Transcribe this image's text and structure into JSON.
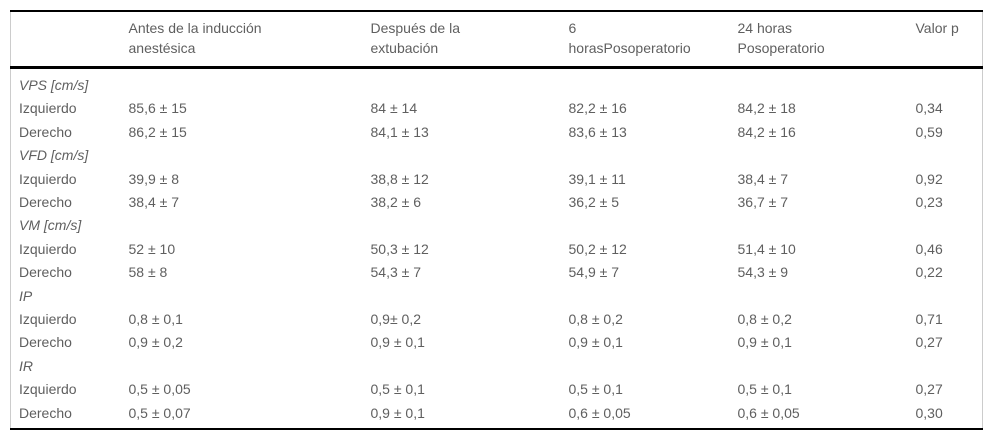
{
  "colors": {
    "text": "#5f5f5f",
    "border_strong": "#000000",
    "border_light": "#cccccc",
    "background": "#ffffff"
  },
  "table": {
    "columns": [
      {
        "label": ""
      },
      {
        "label": "Antes de la inducción\nanestésica"
      },
      {
        "label": "Después de la\nextubación"
      },
      {
        "label": "6\nhorasPosoperatorio"
      },
      {
        "label": "24 horas\nPosoperatorio"
      },
      {
        "label": "Valor p"
      }
    ],
    "groups": [
      {
        "label": "VPS [cm/s]",
        "rows": [
          {
            "label": "Izquierdo",
            "values": [
              "85,6 ± 15",
              "84 ± 14",
              "82,2 ± 16",
              "84,2 ± 18",
              "0,34"
            ]
          },
          {
            "label": "Derecho",
            "values": [
              "86,2 ± 15",
              "84,1 ± 13",
              "83,6 ± 13",
              "84,2 ± 16",
              "0,59"
            ]
          }
        ]
      },
      {
        "label": "VFD [cm/s]",
        "rows": [
          {
            "label": "Izquierdo",
            "values": [
              "39,9 ± 8",
              "38,8 ± 12",
              "39,1 ± 11",
              "38,4 ± 7",
              "0,92"
            ]
          },
          {
            "label": "Derecho",
            "values": [
              "38,4 ± 7",
              "38,2 ± 6",
              "36,2 ± 5",
              "36,7 ± 7",
              "0,23"
            ]
          }
        ]
      },
      {
        "label": "VM [cm/s]",
        "rows": [
          {
            "label": "Izquierdo",
            "values": [
              "52 ± 10",
              "50,3 ± 12",
              "50,2 ± 12",
              "51,4 ± 10",
              "0,46"
            ]
          },
          {
            "label": "Derecho",
            "values": [
              "58 ± 8",
              "54,3 ± 7",
              "54,9 ± 7",
              "54,3 ± 9",
              "0,22"
            ]
          }
        ]
      },
      {
        "label": "IP",
        "rows": [
          {
            "label": "Izquierdo",
            "values": [
              "0,8 ± 0,1",
              "0,9± 0,2",
              "0,8 ± 0,2",
              "0,8 ± 0,2",
              "0,71"
            ]
          },
          {
            "label": "Derecho",
            "values": [
              "0,9 ± 0,2",
              "0,9 ± 0,1",
              "0,9 ± 0,1",
              "0,9 ± 0,1",
              "0,27"
            ]
          }
        ]
      },
      {
        "label": "IR",
        "rows": [
          {
            "label": "Izquierdo",
            "values": [
              "0,5 ± 0,05",
              "0,5 ± 0,1",
              "0,5 ± 0,1",
              "0,5 ± 0,1",
              "0,27"
            ]
          },
          {
            "label": "Derecho",
            "values": [
              "0,5 ± 0,07",
              "0,9 ± 0,1",
              "0,6 ± 0,05",
              "0,6 ± 0,05",
              "0,30"
            ]
          }
        ]
      }
    ]
  }
}
